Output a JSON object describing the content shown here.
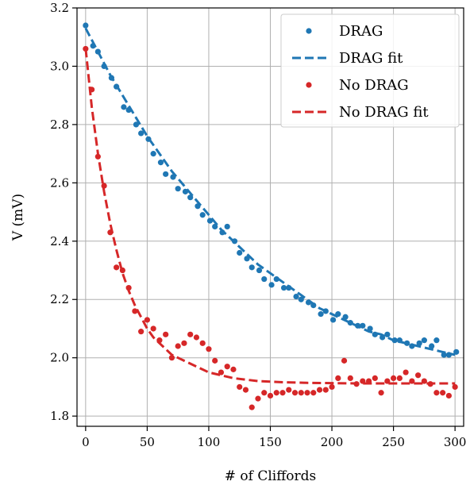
{
  "chart_data": {
    "type": "scatter",
    "xlabel": "# of Cliffords",
    "ylabel": "V (mV)",
    "xlim": [
      -7,
      307
    ],
    "ylim": [
      1.765,
      3.2
    ],
    "x_ticks": [
      0,
      50,
      100,
      150,
      200,
      250,
      300
    ],
    "y_ticks": [
      1.8,
      2.0,
      2.2,
      2.4,
      2.6,
      2.8,
      3.0,
      3.2
    ],
    "grid": true,
    "legend_position": "top-right",
    "series": [
      {
        "name": "DRAG",
        "kind": "points",
        "color": "#1f77b4",
        "x": [
          0,
          6,
          10,
          15,
          21,
          25,
          31,
          35,
          41,
          45,
          51,
          55,
          61,
          65,
          71,
          75,
          81,
          85,
          91,
          95,
          101,
          105,
          111,
          115,
          121,
          125,
          131,
          135,
          141,
          145,
          151,
          155,
          161,
          165,
          171,
          175,
          181,
          185,
          191,
          195,
          201,
          205,
          211,
          215,
          221,
          225,
          231,
          235,
          241,
          245,
          251,
          255,
          261,
          265,
          271,
          275,
          281,
          285,
          291,
          295,
          301
        ],
        "y": [
          3.14,
          3.07,
          3.05,
          3.0,
          2.96,
          2.93,
          2.86,
          2.85,
          2.8,
          2.77,
          2.75,
          2.7,
          2.67,
          2.63,
          2.62,
          2.58,
          2.57,
          2.55,
          2.52,
          2.49,
          2.47,
          2.45,
          2.43,
          2.45,
          2.4,
          2.36,
          2.34,
          2.31,
          2.3,
          2.27,
          2.25,
          2.27,
          2.24,
          2.24,
          2.21,
          2.2,
          2.19,
          2.18,
          2.15,
          2.16,
          2.13,
          2.15,
          2.14,
          2.12,
          2.11,
          2.11,
          2.1,
          2.08,
          2.07,
          2.08,
          2.06,
          2.06,
          2.05,
          2.04,
          2.05,
          2.06,
          2.04,
          2.06,
          2.01,
          2.01,
          2.02
        ]
      },
      {
        "name": "DRAG fit",
        "kind": "dashed-line",
        "color": "#1f77b4",
        "x": [
          0,
          10,
          20,
          30,
          40,
          50,
          60,
          70,
          80,
          90,
          100,
          110,
          120,
          130,
          140,
          150,
          160,
          170,
          180,
          190,
          200,
          210,
          220,
          230,
          240,
          250,
          260,
          270,
          280,
          290,
          300
        ],
        "y": [
          3.13,
          3.05,
          2.97,
          2.9,
          2.83,
          2.76,
          2.7,
          2.64,
          2.59,
          2.54,
          2.49,
          2.44,
          2.4,
          2.36,
          2.32,
          2.29,
          2.26,
          2.23,
          2.2,
          2.17,
          2.15,
          2.13,
          2.11,
          2.09,
          2.08,
          2.06,
          2.05,
          2.04,
          2.03,
          2.02,
          2.01
        ]
      },
      {
        "name": "No DRAG",
        "kind": "points",
        "color": "#d62728",
        "x": [
          0,
          5,
          10,
          15,
          20,
          25,
          30,
          35,
          40,
          45,
          50,
          55,
          60,
          65,
          70,
          75,
          80,
          85,
          90,
          95,
          100,
          105,
          110,
          115,
          120,
          125,
          130,
          135,
          140,
          145,
          150,
          155,
          160,
          165,
          170,
          175,
          180,
          185,
          190,
          195,
          200,
          205,
          210,
          215,
          220,
          225,
          230,
          235,
          240,
          245,
          250,
          255,
          260,
          265,
          270,
          275,
          280,
          285,
          290,
          295,
          300
        ],
        "y": [
          3.06,
          2.92,
          2.69,
          2.59,
          2.43,
          2.31,
          2.3,
          2.24,
          2.16,
          2.09,
          2.13,
          2.1,
          2.06,
          2.08,
          2.0,
          2.04,
          2.05,
          2.08,
          2.07,
          2.05,
          2.03,
          1.99,
          1.95,
          1.97,
          1.96,
          1.9,
          1.89,
          1.83,
          1.86,
          1.88,
          1.87,
          1.88,
          1.88,
          1.89,
          1.88,
          1.88,
          1.88,
          1.88,
          1.89,
          1.89,
          1.9,
          1.93,
          1.99,
          1.93,
          1.91,
          1.92,
          1.92,
          1.93,
          1.88,
          1.92,
          1.93,
          1.93,
          1.95,
          1.92,
          1.94,
          1.92,
          1.91,
          1.88,
          1.88,
          1.87,
          1.9
        ]
      },
      {
        "name": "No DRAG fit",
        "kind": "dashed-line",
        "color": "#d62728",
        "x": [
          0,
          5,
          10,
          15,
          20,
          25,
          30,
          35,
          40,
          45,
          50,
          55,
          60,
          65,
          70,
          75,
          80,
          90,
          100,
          110,
          120,
          130,
          140,
          150,
          160,
          180,
          200,
          220,
          240,
          260,
          280,
          300
        ],
        "y": [
          3.06,
          2.86,
          2.7,
          2.57,
          2.46,
          2.37,
          2.29,
          2.23,
          2.18,
          2.14,
          2.1,
          2.07,
          2.05,
          2.03,
          2.01,
          2.0,
          1.99,
          1.97,
          1.95,
          1.94,
          1.93,
          1.925,
          1.92,
          1.918,
          1.916,
          1.914,
          1.913,
          1.912,
          1.912,
          1.912,
          1.912,
          1.912
        ]
      }
    ]
  }
}
